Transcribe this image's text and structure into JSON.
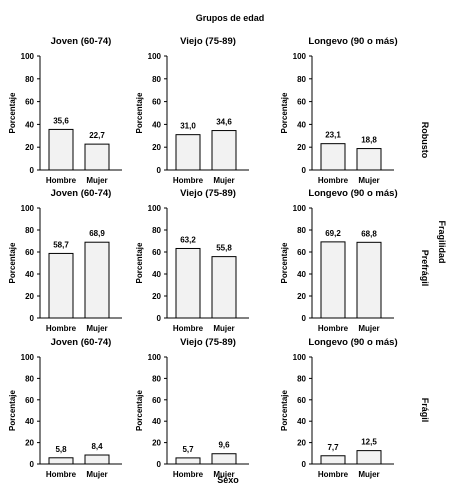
{
  "header": "Grupos de edad",
  "x_axis_label": "Sexo",
  "side_group_label": "Fragilidad",
  "chart_data": [
    {
      "type": "bar",
      "row": "Robusto",
      "title": "Joven (60-74)",
      "categories": [
        "Hombre",
        "Mujer"
      ],
      "values": [
        35.6,
        22.7
      ],
      "value_labels": [
        "35,6",
        "22,7"
      ],
      "ylabel": "Porcentaje",
      "ylim": [
        0,
        100
      ],
      "yticks": [
        0,
        20,
        40,
        60,
        80,
        100
      ],
      "bar_color": "#f2f2f2"
    },
    {
      "type": "bar",
      "row": "Robusto",
      "title": "Viejo (75-89)",
      "categories": [
        "Hombre",
        "Mujer"
      ],
      "values": [
        31.0,
        34.6
      ],
      "value_labels": [
        "31,0",
        "34,6"
      ],
      "ylabel": "Porcentaje",
      "ylim": [
        0,
        100
      ],
      "yticks": [
        0,
        20,
        40,
        60,
        80,
        100
      ],
      "bar_color": "#f2f2f2"
    },
    {
      "type": "bar",
      "row": "Robusto",
      "title": "Longevo (90 o más)",
      "categories": [
        "Hombre",
        "Mujer"
      ],
      "values": [
        23.1,
        18.8
      ],
      "value_labels": [
        "23,1",
        "18,8"
      ],
      "ylabel": "Porcentaje",
      "ylim": [
        0,
        100
      ],
      "yticks": [
        0,
        20,
        40,
        60,
        80,
        100
      ],
      "bar_color": "#f2f2f2"
    },
    {
      "type": "bar",
      "row": "Prefrágil",
      "title": "Joven (60-74)",
      "categories": [
        "Hombre",
        "Mujer"
      ],
      "values": [
        58.7,
        68.9
      ],
      "value_labels": [
        "58,7",
        "68,9"
      ],
      "ylabel": "Porcentaje",
      "ylim": [
        0,
        100
      ],
      "yticks": [
        0,
        20,
        40,
        60,
        80,
        100
      ],
      "bar_color": "#f2f2f2"
    },
    {
      "type": "bar",
      "row": "Prefrágil",
      "title": "Viejo (75-89)",
      "categories": [
        "Hombre",
        "Mujer"
      ],
      "values": [
        63.2,
        55.8
      ],
      "value_labels": [
        "63,2",
        "55,8"
      ],
      "ylabel": "Porcentaje",
      "ylim": [
        0,
        100
      ],
      "yticks": [
        0,
        20,
        40,
        60,
        80,
        100
      ],
      "bar_color": "#f2f2f2"
    },
    {
      "type": "bar",
      "row": "Prefrágil",
      "title": "Longevo (90 o más)",
      "categories": [
        "Hombre",
        "Mujer"
      ],
      "values": [
        69.2,
        68.8
      ],
      "value_labels": [
        "69,2",
        "68,8"
      ],
      "ylabel": "Porcentaje",
      "ylim": [
        0,
        100
      ],
      "yticks": [
        0,
        20,
        40,
        60,
        80,
        100
      ],
      "bar_color": "#f2f2f2"
    },
    {
      "type": "bar",
      "row": "Frágil",
      "title": "Joven (60-74)",
      "categories": [
        "Hombre",
        "Mujer"
      ],
      "values": [
        5.8,
        8.4
      ],
      "value_labels": [
        "5,8",
        "8,4"
      ],
      "ylabel": "Porcentaje",
      "ylim": [
        0,
        100
      ],
      "yticks": [
        0,
        20,
        40,
        60,
        80,
        100
      ],
      "bar_color": "#f2f2f2"
    },
    {
      "type": "bar",
      "row": "Frágil",
      "title": "Viejo (75-89)",
      "categories": [
        "Hombre",
        "Mujer"
      ],
      "values": [
        5.7,
        9.6
      ],
      "value_labels": [
        "5,7",
        "9,6"
      ],
      "ylabel": "Porcentaje",
      "ylim": [
        0,
        100
      ],
      "yticks": [
        0,
        20,
        40,
        60,
        80,
        100
      ],
      "bar_color": "#f2f2f2"
    },
    {
      "type": "bar",
      "row": "Frágil",
      "title": "Longevo (90 o más)",
      "categories": [
        "Hombre",
        "Mujer"
      ],
      "values": [
        7.7,
        12.5
      ],
      "value_labels": [
        "7,7",
        "12,5"
      ],
      "ylabel": "Porcentaje",
      "ylim": [
        0,
        100
      ],
      "yticks": [
        0,
        20,
        40,
        60,
        80,
        100
      ],
      "bar_color": "#f2f2f2"
    }
  ]
}
